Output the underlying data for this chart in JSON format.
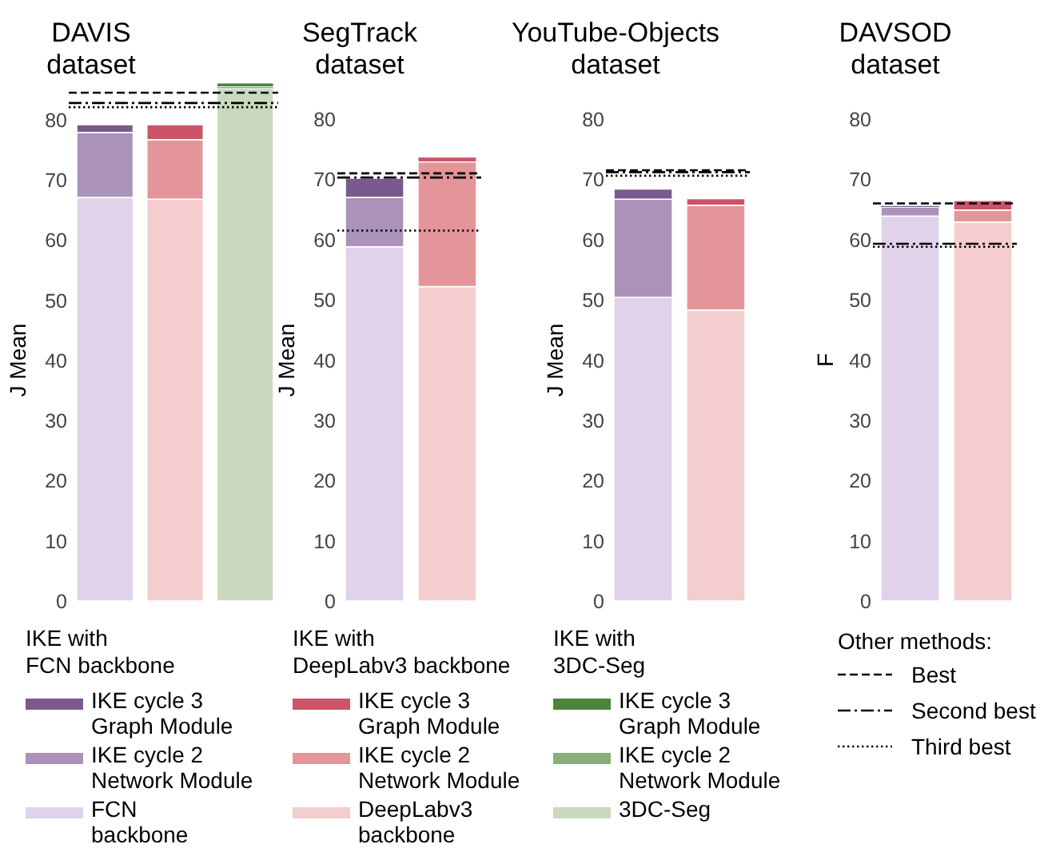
{
  "chart_data": [
    {
      "type": "bar",
      "stacked": true,
      "title": "DAVIS\ndataset",
      "ylabel": "J Mean",
      "categories": [
        null,
        null,
        null
      ],
      "ylim": [
        0,
        86.1
      ],
      "yticks": [
        0,
        10,
        20,
        30,
        40,
        50,
        60,
        70,
        80
      ],
      "legend": "bottom",
      "annotations": [
        "IKE with\nFCN backbone",
        "IKE with\nDeepLabv3 backbone",
        "IKE with\n3DC-Seg",
        "Other methods:"
      ],
      "series": [
        {
          "name": "FCN\nbackbone",
          "color": "#e0d2ea",
          "values": [
            67.1,
            null,
            null
          ]
        },
        {
          "name": "IKE cycle 2\nNetwork Module",
          "color": "#ab92b8",
          "values": [
            10.8,
            null,
            null
          ]
        },
        {
          "name": "IKE cycle 3\nGraph Module",
          "color": "#7a5a8e",
          "values": [
            1.3,
            null,
            null
          ]
        },
        {
          "name": "DeepLabv3\nbackbone",
          "color": "#f4cdcf",
          "values": [
            null,
            66.8,
            null
          ]
        },
        {
          "name": "IKE cycle 2\nNetwork Module",
          "color": "#e4959a",
          "values": [
            null,
            9.9,
            null
          ]
        },
        {
          "name": "IKE cycle 3\nGraph Module",
          "color": "#cc5468",
          "values": [
            null,
            2.5,
            null
          ]
        },
        {
          "name": "3DC-Seg",
          "color": "#c8d9bd",
          "values": [
            null,
            null,
            85.2
          ]
        },
        {
          "name": "IKE cycle 2\nNetwork Module",
          "color": "#88b077",
          "values": [
            null,
            null,
            0.3
          ]
        },
        {
          "name": "IKE cycle 3\nGraph Module",
          "color": "#4a853a",
          "values": [
            null,
            null,
            0.6
          ]
        }
      ],
      "ref_lines": [
        {
          "axis": "y",
          "value": 84.5,
          "label": "Best",
          "line_style": "dashed"
        },
        {
          "axis": "y",
          "value": 82.8,
          "label": "Second best",
          "line_style": "dashdot"
        },
        {
          "axis": "y",
          "value": 82.1,
          "label": "Third best",
          "line_style": "dotted"
        }
      ]
    },
    {
      "type": "bar",
      "stacked": true,
      "title": "SegTrack\ndataset",
      "ylabel": "J Mean",
      "categories": [
        null,
        null
      ],
      "ylim": [
        0,
        80
      ],
      "yticks": [
        0,
        10,
        20,
        30,
        40,
        50,
        60,
        70,
        80
      ],
      "series": [
        {
          "color": "#e0d2ea",
          "values": [
            58.8,
            null
          ]
        },
        {
          "color": "#ab92b8",
          "values": [
            8.2,
            null
          ]
        },
        {
          "color": "#7a5a8e",
          "values": [
            3.2,
            null
          ]
        },
        {
          "color": "#f4cdcf",
          "values": [
            null,
            52.2
          ]
        },
        {
          "color": "#e4959a",
          "values": [
            null,
            20.7
          ]
        },
        {
          "color": "#cc5468",
          "values": [
            null,
            0.8
          ]
        }
      ],
      "ref_lines": [
        {
          "axis": "y",
          "value": 71.0,
          "line_style": "dashed"
        },
        {
          "axis": "y",
          "value": 70.3,
          "line_style": "dashdot"
        },
        {
          "axis": "y",
          "value": 61.5,
          "line_style": "dotted"
        }
      ]
    },
    {
      "type": "bar",
      "stacked": true,
      "title": "YouTube-Objects\ndataset",
      "ylabel": "J Mean",
      "categories": [
        null,
        null
      ],
      "ylim": [
        0,
        80
      ],
      "yticks": [
        0,
        10,
        20,
        30,
        40,
        50,
        60,
        70,
        80
      ],
      "series": [
        {
          "color": "#e0d2ea",
          "values": [
            50.4,
            null
          ]
        },
        {
          "color": "#ab92b8",
          "values": [
            16.3,
            null
          ]
        },
        {
          "color": "#7a5a8e",
          "values": [
            1.7,
            null
          ]
        },
        {
          "color": "#f4cdcf",
          "values": [
            null,
            48.3
          ]
        },
        {
          "color": "#e4959a",
          "values": [
            null,
            17.4
          ]
        },
        {
          "color": "#cc5468",
          "values": [
            null,
            1.1
          ]
        }
      ],
      "ref_lines": [
        {
          "axis": "y",
          "value": 71.5,
          "line_style": "dashed"
        },
        {
          "axis": "y",
          "value": 71.2,
          "line_style": "dashdot"
        },
        {
          "axis": "y",
          "value": 70.6,
          "line_style": "dotted"
        }
      ]
    },
    {
      "type": "bar",
      "stacked": true,
      "title": "DAVSOD\ndataset",
      "ylabel": "F",
      "categories": [
        null,
        null
      ],
      "ylim": [
        0,
        80
      ],
      "yticks": [
        0,
        10,
        20,
        30,
        40,
        50,
        60,
        70,
        80
      ],
      "series": [
        {
          "color": "#e0d2ea",
          "values": [
            63.9,
            null
          ]
        },
        {
          "color": "#ab92b8",
          "values": [
            1.5,
            null
          ]
        },
        {
          "color": "#7a5a8e",
          "values": [
            0.2,
            null
          ]
        },
        {
          "color": "#f4cdcf",
          "values": [
            null,
            62.9
          ]
        },
        {
          "color": "#e4959a",
          "values": [
            null,
            2.0
          ]
        },
        {
          "color": "#cc5468",
          "values": [
            null,
            1.6
          ]
        }
      ],
      "ref_lines": [
        {
          "axis": "y",
          "value": 66.0,
          "line_style": "dashed"
        },
        {
          "axis": "y",
          "value": 59.3,
          "line_style": "dashdot"
        },
        {
          "axis": "y",
          "value": 58.8,
          "line_style": "dotted"
        }
      ]
    }
  ]
}
